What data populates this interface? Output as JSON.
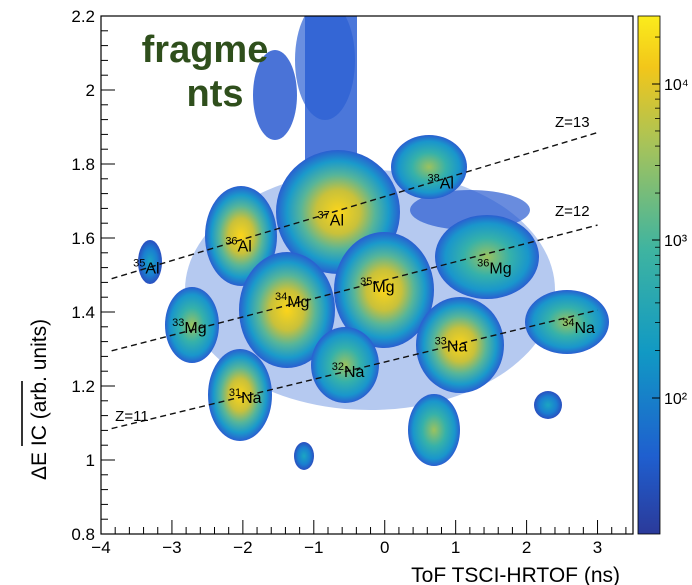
{
  "chart_data": {
    "type": "heatmap",
    "xlabel": "ToF TSCI-HRTOF (ns)",
    "ylabel": "ΔE IC (arb. units)",
    "xlim": [
      -4,
      3.5
    ],
    "ylim": [
      0.8,
      2.2
    ],
    "x_ticks": [
      "−4",
      "−3",
      "−2",
      "−1",
      "0",
      "1",
      "2",
      "3"
    ],
    "y_ticks": [
      "0.8",
      "1",
      "1.2",
      "1.4",
      "1.6",
      "1.8",
      "2",
      "2.2"
    ],
    "colorbar": {
      "scale": "log",
      "tick_labels": [
        "10²",
        "10³",
        "10⁴"
      ]
    },
    "annotation": "fragme\nnts",
    "isotopes": [
      {
        "mass": "35",
        "element": "Al",
        "x": -3.35,
        "y": 1.52
      },
      {
        "mass": "36",
        "element": "Al",
        "x": -2.05,
        "y": 1.58
      },
      {
        "mass": "37",
        "element": "Al",
        "x": -0.75,
        "y": 1.65
      },
      {
        "mass": "38",
        "element": "Al",
        "x": 0.8,
        "y": 1.75
      },
      {
        "mass": "33",
        "element": "Mg",
        "x": -2.8,
        "y": 1.36
      },
      {
        "mass": "34",
        "element": "Mg",
        "x": -1.35,
        "y": 1.43
      },
      {
        "mass": "35",
        "element": "Mg",
        "x": -0.15,
        "y": 1.47
      },
      {
        "mass": "36",
        "element": "Mg",
        "x": 1.5,
        "y": 1.52
      },
      {
        "mass": "31",
        "element": "Na",
        "x": -2.0,
        "y": 1.17
      },
      {
        "mass": "32",
        "element": "Na",
        "x": -0.55,
        "y": 1.24
      },
      {
        "mass": "33",
        "element": "Na",
        "x": 0.9,
        "y": 1.31
      },
      {
        "mass": "34",
        "element": "Na",
        "x": 2.7,
        "y": 1.36
      }
    ],
    "z_lines": [
      {
        "label": "Z=11",
        "x": [
          -3.85,
          3.0
        ],
        "y": [
          1.085,
          1.405
        ]
      },
      {
        "label": "Z=12",
        "x": [
          -3.85,
          3.0
        ],
        "y": [
          1.295,
          1.635
        ]
      },
      {
        "label": "Z=13",
        "x": [
          -3.85,
          3.0
        ],
        "y": [
          1.49,
          1.885
        ]
      }
    ]
  }
}
